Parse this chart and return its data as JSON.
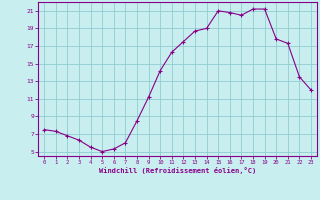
{
  "x": [
    0,
    1,
    2,
    3,
    4,
    5,
    6,
    7,
    8,
    9,
    10,
    11,
    12,
    13,
    14,
    15,
    16,
    17,
    18,
    19,
    20,
    21,
    22,
    23
  ],
  "y": [
    7.5,
    7.3,
    6.8,
    6.3,
    5.5,
    5.0,
    5.3,
    6.0,
    8.5,
    11.2,
    14.2,
    16.3,
    17.5,
    18.7,
    19.0,
    21.0,
    20.8,
    20.5,
    21.2,
    21.2,
    17.8,
    17.3,
    13.5,
    12.0
  ],
  "line_color": "#880088",
  "marker": "+",
  "bg_color": "#c8eef0",
  "grid_color": "#90cdd0",
  "xlabel": "Windchill (Refroidissement éolien,°C)",
  "ylabel_ticks": [
    5,
    7,
    9,
    11,
    13,
    15,
    17,
    19,
    21
  ],
  "xlim": [
    -0.5,
    23.5
  ],
  "ylim": [
    4.5,
    22.0
  ],
  "axis_color": "#880088",
  "font_color": "#880088",
  "tick_fontsize": 4.0,
  "xlabel_fontsize": 5.0,
  "ytick_fontsize": 4.5
}
